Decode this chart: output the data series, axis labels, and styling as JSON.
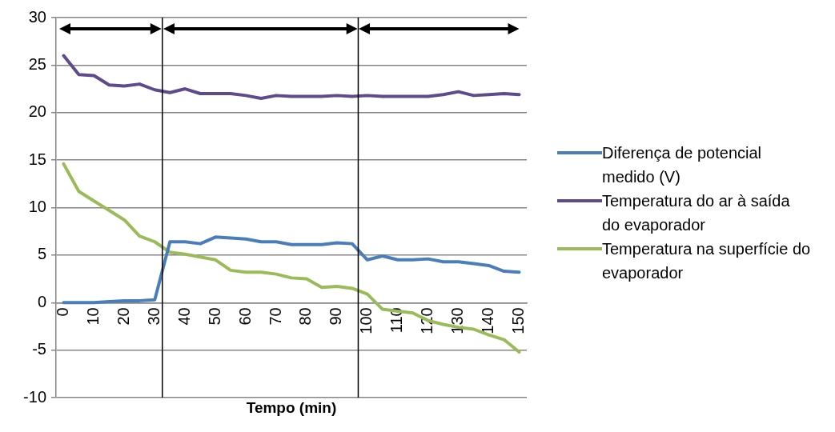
{
  "chart_data": {
    "type": "line",
    "xlabel": "Tempo (min)",
    "x": [
      0,
      5,
      10,
      15,
      20,
      25,
      30,
      35,
      40,
      45,
      50,
      55,
      60,
      65,
      70,
      75,
      80,
      85,
      90,
      95,
      100,
      105,
      110,
      115,
      120,
      125,
      130,
      135,
      140,
      145,
      150
    ],
    "xlim": [
      -2.5,
      152.5
    ],
    "xticks": [
      0,
      10,
      20,
      30,
      40,
      50,
      60,
      70,
      80,
      90,
      100,
      110,
      120,
      130,
      140,
      150
    ],
    "ylim": [
      -10,
      30
    ],
    "yticks": [
      -10,
      -5,
      0,
      5,
      10,
      15,
      20,
      25,
      30
    ],
    "grid": "y",
    "legend": "right",
    "marker": "none",
    "line_style": "solid",
    "ref_lines": [
      {
        "axis": "x",
        "value": 32.5,
        "color": "#000000"
      },
      {
        "axis": "x",
        "value": 97,
        "color": "#000000"
      }
    ],
    "series": [
      {
        "name": "Diferença de potencial medido (V)",
        "color": "#4a7ebb",
        "values": [
          0,
          0,
          0,
          0.1,
          0.2,
          0.2,
          0.3,
          6.4,
          6.4,
          6.2,
          6.9,
          6.8,
          6.7,
          6.4,
          6.4,
          6.1,
          6.1,
          6.1,
          6.3,
          6.2,
          4.5,
          4.9,
          4.5,
          4.5,
          4.6,
          4.3,
          4.3,
          4.1,
          3.9,
          3.3,
          3.2
        ]
      },
      {
        "name": "Temperatura do ar à saída do evaporador",
        "color": "#5f4b8b",
        "values": [
          26,
          24,
          23.9,
          22.9,
          22.8,
          23,
          22.4,
          22.1,
          22.5,
          22,
          22,
          22,
          21.8,
          21.5,
          21.8,
          21.7,
          21.7,
          21.7,
          21.8,
          21.7,
          21.8,
          21.7,
          21.7,
          21.7,
          21.7,
          21.9,
          22.2,
          21.8,
          21.9,
          22,
          21.9
        ]
      },
      {
        "name": "Temperatura na superfície do evaporador",
        "color": "#9bbb59",
        "values": [
          14.6,
          11.7,
          10.7,
          9.7,
          8.7,
          7,
          6.4,
          5.3,
          5.1,
          4.8,
          4.5,
          3.4,
          3.2,
          3.2,
          3,
          2.6,
          2.5,
          1.6,
          1.7,
          1.5,
          0.9,
          -0.7,
          -0.9,
          -1.1,
          -1.9,
          -2.3,
          -2.6,
          -2.8,
          -3.4,
          -3.9,
          -5.2
        ]
      }
    ]
  }
}
